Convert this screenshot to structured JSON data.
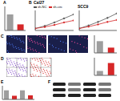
{
  "panel_labels": [
    "B",
    "C",
    "D",
    "F"
  ],
  "chart_data": [
    {
      "type": "bar",
      "title": "A",
      "categories": [
        null,
        null
      ],
      "values": [
        1,
        0.38
      ],
      "colors": [
        "#9e9e9e",
        "#d62728"
      ],
      "ylim": [
        0,
        1.5
      ],
      "yticks": [
        0,
        0.5,
        1,
        1.5
      ],
      "tick_labels": false
    },
    {
      "type": "line",
      "title": "Cal27",
      "x": [
        0,
        24,
        48,
        72,
        96
      ],
      "xlim": [
        0,
        96
      ],
      "xticks": [
        0,
        24,
        48,
        72,
        96
      ],
      "ylim": [
        0,
        2
      ],
      "yticks": [
        0,
        0.5,
        1,
        1.5,
        2
      ],
      "tick_labels": false,
      "legend": "top",
      "series": [
        {
          "name": "sh-NC",
          "color": "#555555",
          "values": [
            0.2,
            0.45,
            0.8,
            1.2,
            1.6
          ]
        },
        {
          "name": "sh-circ",
          "color": "#d62728",
          "values": [
            0.2,
            0.35,
            0.55,
            0.8,
            1.0
          ]
        }
      ]
    },
    {
      "type": "line",
      "title": "SCC9",
      "x": [
        0,
        24,
        48,
        72,
        96
      ],
      "xlim": [
        0,
        96
      ],
      "xticks": [
        0,
        24,
        48,
        72,
        96
      ],
      "ylim": [
        0,
        2
      ],
      "yticks": [
        0,
        0.5,
        1,
        1.5,
        2
      ],
      "tick_labels": false,
      "series": [
        {
          "color": "#555555",
          "values": [
            0.2,
            0.5,
            0.85,
            1.25,
            1.7
          ]
        },
        {
          "color": "#d62728",
          "values": [
            0.2,
            0.38,
            0.6,
            0.85,
            1.05
          ]
        }
      ]
    },
    {
      "type": "bar",
      "categories": [
        null,
        null
      ],
      "values": [
        100,
        45
      ],
      "colors": [
        "#9e9e9e",
        "#d62728"
      ],
      "ylim": [
        0,
        150
      ],
      "yticks": [
        0,
        50,
        100,
        150
      ],
      "tick_labels": false
    },
    {
      "type": "bar",
      "categories": [
        null,
        null
      ],
      "values": [
        10,
        28
      ],
      "colors": [
        "#9e9e9e",
        "#d62728"
      ],
      "ylim": [
        0,
        40
      ],
      "yticks": [
        0,
        10,
        20,
        30,
        40
      ],
      "tick_labels": false
    },
    {
      "type": "bar",
      "title": "E",
      "categories": [
        null,
        null,
        null,
        null
      ],
      "values": [
        1,
        0.4,
        1,
        0.45
      ],
      "colors": [
        "#9e9e9e",
        "#d62728",
        "#9e9e9e",
        "#d62728"
      ],
      "ylim": [
        0,
        1.5
      ],
      "yticks": [
        0,
        0.5,
        1,
        1.5
      ],
      "tick_labels": false
    }
  ]
}
